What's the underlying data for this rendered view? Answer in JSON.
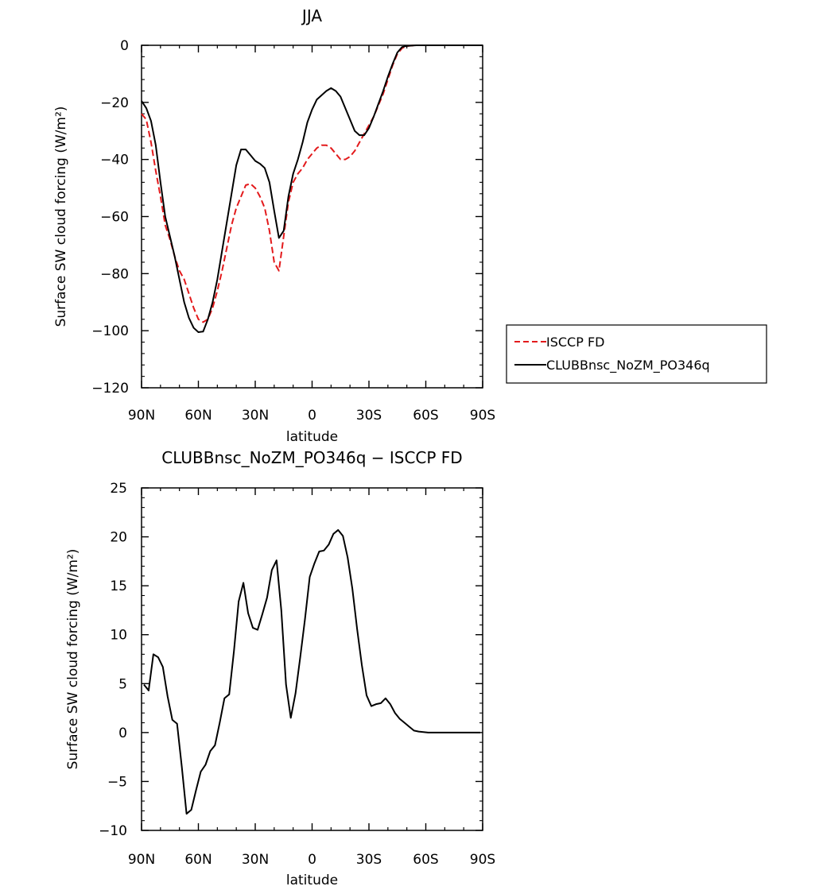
{
  "chart_data": [
    {
      "type": "line",
      "title": "JJA",
      "xlabel": "latitude",
      "ylabel": "Surface SW cloud forcing (W/m²)",
      "x": [
        90,
        87.5,
        85,
        82.5,
        80,
        77.5,
        75,
        72.5,
        70,
        67.5,
        65,
        62.5,
        60,
        57.5,
        55,
        52.5,
        50,
        47.5,
        45,
        42.5,
        40,
        37.5,
        35,
        32.5,
        30,
        27.5,
        25,
        22.5,
        20,
        17.5,
        15,
        12.5,
        10,
        7.5,
        5,
        2.5,
        0,
        -2.5,
        -5,
        -7.5,
        -10,
        -12.5,
        -15,
        -17.5,
        -20,
        -22.5,
        -25,
        -27.5,
        -30,
        -32.5,
        -35,
        -37.5,
        -40,
        -42.5,
        -45,
        -47.5,
        -50,
        -52.5,
        -55,
        -57.5,
        -60,
        -62.5,
        -65,
        -67.5,
        -70,
        -72.5,
        -75,
        -77.5,
        -80,
        -82.5,
        -85,
        -87.5,
        -90
      ],
      "xlim": [
        90,
        -90
      ],
      "xticks": [
        90,
        60,
        30,
        0,
        -30,
        -60,
        -90
      ],
      "xtick_labels": [
        "90N",
        "60N",
        "30N",
        "0",
        "30S",
        "60S",
        "90S"
      ],
      "ylim": [
        -120,
        0
      ],
      "yticks": [
        -120,
        -100,
        -80,
        -60,
        -40,
        -20,
        0
      ],
      "ytick_labels": [
        "−120",
        "−100",
        "−80",
        "−60",
        "−40",
        "−20",
        "0"
      ],
      "legend_position": "right",
      "series": [
        {
          "name": "ISCCP FD",
          "color": "#e31a1c",
          "dash": "dashed",
          "values": [
            -24,
            -26,
            -34,
            -44,
            -53,
            -63,
            -68,
            -74,
            -79,
            -82,
            -87,
            -92,
            -96,
            -97,
            -96,
            -92,
            -86,
            -79,
            -71,
            -63,
            -57,
            -53,
            -49,
            -48.5,
            -50,
            -53,
            -57,
            -65,
            -76,
            -79,
            -67,
            -55,
            -48,
            -45,
            -43,
            -40,
            -38,
            -36,
            -35,
            -35,
            -36,
            -38,
            -40,
            -40,
            -39,
            -37,
            -34,
            -31,
            -28,
            -25,
            -21,
            -17,
            -12,
            -7,
            -3,
            -1,
            -0.3,
            -0.1,
            0,
            0,
            0,
            0,
            0,
            0,
            0,
            0,
            0,
            0,
            0,
            0,
            0,
            0,
            0
          ]
        },
        {
          "name": "CLUBBnsc_NoZM_PO346q",
          "color": "#000000",
          "dash": "solid",
          "values": [
            -19.5,
            -22,
            -26.5,
            -35,
            -48,
            -60,
            -67,
            -74,
            -82,
            -90,
            -95.5,
            -99,
            -100.5,
            -100.3,
            -96,
            -90,
            -82,
            -72,
            -62,
            -52,
            -42,
            -36.5,
            -36.5,
            -38.5,
            -40.5,
            -41.5,
            -43,
            -48,
            -58,
            -67.5,
            -65,
            -53,
            -45,
            -40,
            -34,
            -27,
            -22.5,
            -19,
            -17.5,
            -16,
            -15,
            -16,
            -18,
            -22,
            -26,
            -30,
            -31.5,
            -31.5,
            -29,
            -25,
            -20.5,
            -16,
            -11,
            -6.5,
            -2.5,
            -0.6,
            -0.2,
            -0.1,
            0,
            0,
            0,
            0,
            0,
            0,
            0,
            0,
            0,
            0,
            0,
            0,
            0,
            0,
            0
          ]
        }
      ]
    },
    {
      "type": "line",
      "title": "CLUBBnsc_NoZM_PO346q − ISCCP FD",
      "xlabel": "latitude",
      "ylabel": "Surface SW cloud forcing (W/m²)",
      "x": [
        88.75,
        86.25,
        83.75,
        81.25,
        78.75,
        76.25,
        73.75,
        71.25,
        68.75,
        66.25,
        63.75,
        61.25,
        58.75,
        56.25,
        53.75,
        51.25,
        48.75,
        46.25,
        43.75,
        41.25,
        38.75,
        36.25,
        33.75,
        31.25,
        28.75,
        26.25,
        23.75,
        21.25,
        18.75,
        16.25,
        13.75,
        11.25,
        8.75,
        6.25,
        3.75,
        1.25,
        -1.25,
        -3.75,
        -6.25,
        -8.75,
        -11.25,
        -13.75,
        -16.25,
        -18.75,
        -21.25,
        -23.75,
        -26.25,
        -28.75,
        -31.25,
        -33.75,
        -36.25,
        -38.75,
        -41.25,
        -43.75,
        -46.25,
        -48.75,
        -51.25,
        -53.75,
        -56.25,
        -58.75,
        -61.25,
        -63.75,
        -66.25,
        -68.75,
        -71.25,
        -73.75,
        -76.25,
        -78.75,
        -81.25,
        -83.75,
        -86.25,
        -88.75
      ],
      "xlim": [
        90,
        -90
      ],
      "xticks": [
        90,
        60,
        30,
        0,
        -30,
        -60,
        -90
      ],
      "xtick_labels": [
        "90N",
        "60N",
        "30N",
        "0",
        "30S",
        "60S",
        "90S"
      ],
      "ylim": [
        -10,
        25
      ],
      "yticks": [
        -10,
        -5,
        0,
        5,
        10,
        15,
        20,
        25
      ],
      "ytick_labels": [
        "−10",
        "−5",
        "0",
        "5",
        "10",
        "15",
        "20",
        "25"
      ],
      "series": [
        {
          "color": "#000000",
          "dash": "solid",
          "values": [
            4.9,
            4.3,
            8.0,
            7.7,
            6.7,
            3.7,
            1.3,
            0.9,
            -3.5,
            -8.3,
            -7.9,
            -5.9,
            -4.0,
            -3.3,
            -1.9,
            -1.3,
            1.0,
            3.5,
            3.9,
            8.3,
            13.4,
            15.3,
            12.2,
            10.7,
            10.5,
            12.1,
            13.8,
            16.6,
            17.6,
            12.5,
            4.9,
            1.5,
            4.0,
            7.7,
            11.6,
            15.9,
            17.3,
            18.5,
            18.6,
            19.2,
            20.3,
            20.7,
            20.1,
            17.9,
            14.7,
            10.6,
            6.9,
            3.8,
            2.7,
            2.9,
            3.0,
            3.5,
            2.9,
            2.0,
            1.4,
            1.0,
            0.6,
            0.2,
            0.1,
            0.05,
            0,
            0,
            0,
            0,
            0,
            0,
            0,
            0,
            0,
            0,
            0,
            0
          ]
        }
      ]
    }
  ]
}
